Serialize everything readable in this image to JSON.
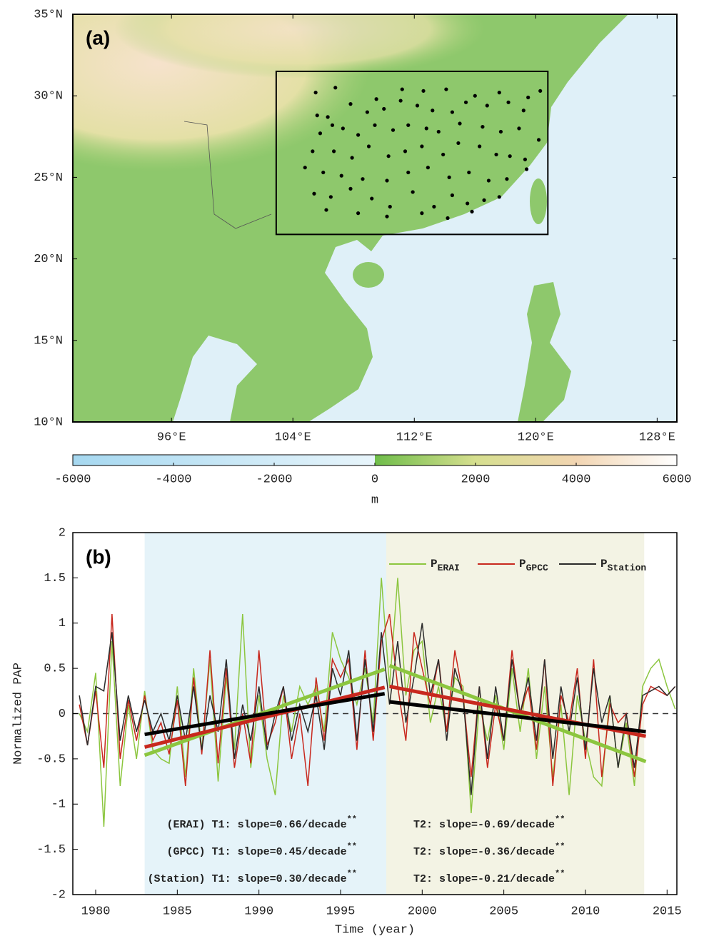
{
  "chart_data": [
    {
      "type": "map",
      "panel_label": "(a)",
      "xlim": [
        89.5,
        129.3
      ],
      "ylim": [
        10,
        35
      ],
      "xticks": [
        {
          "value": 96,
          "label": "96°E"
        },
        {
          "value": 104,
          "label": "104°E"
        },
        {
          "value": 112,
          "label": "112°E"
        },
        {
          "value": 120,
          "label": "120°E"
        },
        {
          "value": 128,
          "label": "128°E"
        }
      ],
      "yticks": [
        {
          "value": 10,
          "label": "10°N"
        },
        {
          "value": 15,
          "label": "15°N"
        },
        {
          "value": 20,
          "label": "20°N"
        },
        {
          "value": 25,
          "label": "25°N"
        },
        {
          "value": 30,
          "label": "30°N"
        },
        {
          "value": 35,
          "label": "35°N"
        }
      ],
      "region": {
        "lon": [
          102.9,
          120.8
        ],
        "lat": [
          21.5,
          31.5
        ]
      },
      "stations": {
        "color": "#000000",
        "x": [
          105.5,
          106.8,
          109.5,
          111.2,
          112.6,
          114.1,
          116.0,
          117.6,
          119.5,
          120.3,
          105.6,
          106.3,
          107.8,
          108.9,
          110.0,
          111.1,
          112.2,
          113.2,
          114.5,
          115.4,
          116.8,
          118.2,
          119.2,
          105.8,
          106.6,
          107.3,
          108.3,
          109.4,
          110.6,
          111.6,
          112.8,
          113.6,
          115.0,
          116.5,
          117.7,
          118.9,
          120.2,
          105.3,
          106.7,
          107.9,
          109.0,
          110.3,
          111.4,
          112.5,
          113.9,
          114.9,
          116.3,
          117.4,
          118.3,
          119.3,
          104.8,
          106.0,
          107.2,
          108.6,
          110.2,
          111.6,
          112.9,
          114.3,
          115.6,
          116.9,
          118.1,
          119.4,
          105.4,
          106.5,
          107.8,
          109.2,
          110.4,
          111.9,
          113.3,
          114.5,
          115.5,
          116.6,
          117.6,
          106.2,
          108.3,
          110.2,
          112.5,
          114.2,
          115.8
        ],
        "values": [
          30.2,
          30.5,
          29.8,
          30.4,
          30.3,
          30.4,
          30.0,
          30.2,
          29.9,
          30.3,
          28.8,
          28.7,
          29.5,
          29.0,
          29.2,
          29.7,
          29.4,
          29.1,
          29.0,
          29.6,
          29.4,
          29.6,
          29.1,
          27.7,
          28.2,
          28.0,
          27.6,
          28.2,
          27.9,
          28.2,
          28.0,
          27.8,
          28.3,
          28.1,
          27.8,
          28.0,
          27.3,
          26.6,
          26.6,
          26.2,
          26.9,
          26.3,
          26.6,
          26.9,
          26.4,
          27.1,
          26.9,
          26.4,
          26.3,
          26.1,
          25.6,
          25.3,
          25.1,
          24.9,
          24.8,
          25.3,
          25.6,
          25.0,
          25.3,
          24.8,
          24.9,
          25.5,
          24.0,
          23.8,
          24.3,
          23.7,
          23.2,
          24.1,
          23.2,
          23.9,
          23.4,
          23.6,
          23.8,
          23.0,
          22.8,
          22.6,
          22.8,
          22.5,
          22.9
        ]
      },
      "colorbar": {
        "lim": [
          -6000,
          6000
        ],
        "ticks": [
          -6000,
          -4000,
          -2000,
          0,
          2000,
          4000,
          6000
        ],
        "label": "m",
        "ocean_colors": [
          "#a6d8f0",
          "#e8f5fb"
        ],
        "land_colors": [
          "#6fbd4a",
          "#d6df8f",
          "#f2d5b2",
          "#ffffff"
        ]
      }
    },
    {
      "type": "line",
      "panel_label": "(b)",
      "xlabel": "Time (year)",
      "ylabel": "Normalized PAP",
      "xlim": [
        1978.6,
        2015.6
      ],
      "ylim": [
        -2,
        2
      ],
      "xticks": [
        1980,
        1985,
        1990,
        1995,
        2000,
        2005,
        2010,
        2015
      ],
      "yticks": [
        -2,
        -1.5,
        -1,
        -0.5,
        0,
        0.5,
        1,
        1.5,
        2
      ],
      "zero_line": true,
      "legend": "upper right",
      "periods": [
        {
          "start": 1983,
          "end": 1997.8,
          "color": "#e5f3f9"
        },
        {
          "start": 1997.8,
          "end": 2013.6,
          "color": "#f3f3e4"
        }
      ],
      "x": [
        1979,
        1979.5,
        1980,
        1980.5,
        1981,
        1981.5,
        1982,
        1982.5,
        1983,
        1983.5,
        1984,
        1984.5,
        1985,
        1985.5,
        1986,
        1986.5,
        1987,
        1987.5,
        1988,
        1988.5,
        1989,
        1989.5,
        1990,
        1990.5,
        1991,
        1991.5,
        1992,
        1992.5,
        1993,
        1993.5,
        1994,
        1994.5,
        1995,
        1995.5,
        1996,
        1996.5,
        1997,
        1997.5,
        1998,
        1998.5,
        1999,
        1999.5,
        2000,
        2000.5,
        2001,
        2001.5,
        2002,
        2002.5,
        2003,
        2003.5,
        2004,
        2004.5,
        2005,
        2005.5,
        2006,
        2006.5,
        2007,
        2007.5,
        2008,
        2008.5,
        2009,
        2009.5,
        2010,
        2010.5,
        2011,
        2011.5,
        2012,
        2012.5,
        2013,
        2013.5,
        2014,
        2014.5,
        2015,
        2015.5
      ],
      "series": [
        {
          "name": "P",
          "subscript": "ERAI",
          "color": "#8cc63f",
          "values": [
            0.0,
            -0.2,
            0.45,
            -1.25,
            0.8,
            -0.8,
            0.1,
            -0.5,
            0.25,
            -0.4,
            -0.5,
            -0.55,
            0.3,
            -0.7,
            0.5,
            -0.4,
            0.6,
            -0.75,
            0.4,
            -0.4,
            1.1,
            -0.6,
            0.2,
            -0.5,
            -0.9,
            0.2,
            -0.2,
            0.3,
            0.1,
            0.3,
            -0.2,
            0.9,
            0.6,
            0.4,
            0.1,
            0.5,
            -0.1,
            1.5,
            0.3,
            1.5,
            0.2,
            0.7,
            0.8,
            -0.1,
            0.3,
            -0.2,
            0.4,
            0.3,
            -1.1,
            0.1,
            -0.3,
            0.2,
            -0.4,
            0.5,
            -0.2,
            0.5,
            -0.5,
            0.3,
            -0.7,
            0.1,
            -0.9,
            0.2,
            -0.3,
            -0.7,
            -0.8,
            0.2,
            -0.6,
            -0.1,
            -0.8,
            0.3,
            0.5,
            0.6,
            0.3,
            0.05
          ]
        },
        {
          "name": "P",
          "subscript": "GPCC",
          "color": "#c8281e",
          "values": [
            0.1,
            -0.35,
            0.25,
            -0.6,
            1.1,
            -0.5,
            0.15,
            -0.3,
            0.2,
            -0.3,
            -0.1,
            -0.45,
            0.15,
            -0.8,
            0.4,
            -0.45,
            0.7,
            -0.55,
            0.5,
            -0.6,
            0.0,
            -0.55,
            0.7,
            -0.35,
            -0.1,
            0.3,
            -0.5,
            0.0,
            -0.8,
            0.4,
            -0.3,
            0.6,
            0.4,
            0.6,
            -0.4,
            0.7,
            -0.3,
            0.8,
            1.1,
            0.3,
            -0.3,
            0.9,
            0.5,
            0.1,
            0.6,
            -0.2,
            0.7,
            0.2,
            -0.7,
            0.3,
            -0.6,
            0.1,
            -0.3,
            0.7,
            0.0,
            0.3,
            -0.4,
            0.6,
            -0.8,
            0.2,
            -0.1,
            0.5,
            -0.5,
            0.6,
            -0.7,
            0.1,
            -0.1,
            0.0,
            -0.7,
            0.1,
            0.3,
            0.25,
            0.2,
            0.3
          ]
        },
        {
          "name": "P",
          "subscript": "Station",
          "color": "#2b2b2b",
          "values": [
            0.2,
            -0.35,
            0.3,
            0.25,
            0.9,
            -0.3,
            0.2,
            -0.2,
            0.15,
            -0.2,
            0.0,
            -0.3,
            0.2,
            -0.3,
            0.3,
            -0.4,
            0.2,
            -0.2,
            0.6,
            -0.5,
            0.1,
            -0.3,
            0.3,
            -0.4,
            0.0,
            0.3,
            -0.3,
            0.1,
            -0.2,
            0.2,
            -0.4,
            0.5,
            0.2,
            0.7,
            -0.3,
            0.6,
            -0.2,
            0.9,
            0.1,
            0.8,
            -0.1,
            0.4,
            1.0,
            0.2,
            0.6,
            -0.3,
            0.5,
            0.2,
            -0.9,
            0.3,
            -0.5,
            0.3,
            -0.3,
            0.6,
            0.0,
            0.4,
            -0.3,
            0.6,
            -0.5,
            0.3,
            -0.2,
            0.4,
            -0.4,
            0.5,
            -0.1,
            0.2,
            -0.6,
            0.0,
            -0.6,
            0.2,
            0.25,
            0.3,
            0.2,
            0.3
          ]
        }
      ],
      "trends": [
        {
          "color": "#8cc63f",
          "x": [
            1983,
            1997.7
          ],
          "values": [
            -0.46,
            0.49
          ]
        },
        {
          "color": "#c8281e",
          "x": [
            1983,
            1997.7
          ],
          "values": [
            -0.37,
            0.29
          ]
        },
        {
          "color": "#000000",
          "x": [
            1983,
            1997.7
          ],
          "values": [
            -0.23,
            0.22
          ]
        },
        {
          "color": "#8cc63f",
          "x": [
            1998,
            2013.7
          ],
          "values": [
            0.53,
            -0.53
          ]
        },
        {
          "color": "#c8281e",
          "x": [
            1998,
            2013.7
          ],
          "values": [
            0.3,
            -0.25
          ]
        },
        {
          "color": "#000000",
          "x": [
            1998,
            2013.7
          ],
          "values": [
            0.13,
            -0.2
          ]
        }
      ],
      "annotations": [
        {
          "text": "(ERAI) T1: slope=0.66/decade",
          "sup": "**"
        },
        {
          "text": "(GPCC) T1: slope=0.45/decade",
          "sup": "**"
        },
        {
          "text": "(Station) T1: slope=0.30/decade",
          "sup": "**"
        },
        {
          "text": "T2: slope=-0.69/decade",
          "sup": "**"
        },
        {
          "text": "T2: slope=-0.36/decade",
          "sup": "**"
        },
        {
          "text": "T2: slope=-0.21/decade",
          "sup": "**"
        }
      ]
    }
  ]
}
